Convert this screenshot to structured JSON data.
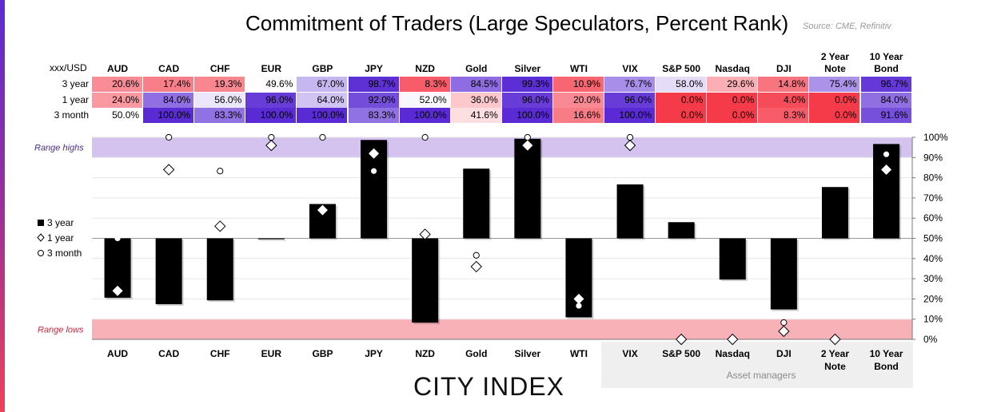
{
  "title": "Commitment of Traders (Large Speculators, Percent Rank)",
  "source": "Source: CME, Refinitiv",
  "table": {
    "corner": "xxx/USD",
    "columns": [
      "AUD",
      "CAD",
      "CHF",
      "EUR",
      "GBP",
      "JPY",
      "NZD",
      "Gold",
      "Silver",
      "WTI",
      "VIX",
      "S&P 500",
      "Nasdaq",
      "DJI",
      "2 Year\nNote",
      "10 Year\nBond"
    ],
    "rows": [
      {
        "label": "3 year",
        "values": [
          "20.6%",
          "17.4%",
          "19.3%",
          "49.6%",
          "67.0%",
          "98.7%",
          "8.3%",
          "84.5%",
          "99.3%",
          "10.9%",
          "76.7%",
          "58.0%",
          "29.6%",
          "14.8%",
          "75.4%",
          "96.7%"
        ]
      },
      {
        "label": "1 year",
        "values": [
          "24.0%",
          "84.0%",
          "56.0%",
          "96.0%",
          "64.0%",
          "92.0%",
          "52.0%",
          "36.0%",
          "96.0%",
          "20.0%",
          "96.0%",
          "0.0%",
          "0.0%",
          "4.0%",
          "0.0%",
          "84.0%"
        ]
      },
      {
        "label": "3 month",
        "values": [
          "50.0%",
          "100.0%",
          "83.3%",
          "100.0%",
          "100.0%",
          "83.3%",
          "100.0%",
          "41.6%",
          "100.0%",
          "16.6%",
          "100.0%",
          "0.0%",
          "0.0%",
          "8.3%",
          "0.0%",
          "91.6%"
        ]
      }
    ]
  },
  "colors": {
    "high": "#5a2bd4",
    "mid": "#ffffff",
    "low": "#f53b4a",
    "range_highs_band": "#d4c3ef",
    "range_lows_band": "#f9b1b8",
    "range_highs_text": "#4a2d8a",
    "range_lows_text": "#c8283c",
    "bar": "#000000",
    "asset_managers_bg": "#efefef"
  },
  "chart_data": {
    "type": "bar",
    "categories": [
      "AUD",
      "CAD",
      "CHF",
      "EUR",
      "GBP",
      "JPY",
      "NZD",
      "Gold",
      "Silver",
      "WTI",
      "VIX",
      "S&P 500",
      "Nasdaq",
      "DJI",
      "2 Year\nNote",
      "10 Year\nBond"
    ],
    "baseline": 50,
    "series": [
      {
        "name": "3 year",
        "kind": "bar",
        "values": [
          20.6,
          17.4,
          19.3,
          49.6,
          67.0,
          98.7,
          8.3,
          84.5,
          99.3,
          10.9,
          76.7,
          58.0,
          29.6,
          14.8,
          75.4,
          96.7
        ]
      },
      {
        "name": "1 year",
        "kind": "diamond",
        "values": [
          24.0,
          84.0,
          56.0,
          96.0,
          64.0,
          92.0,
          52.0,
          36.0,
          96.0,
          20.0,
          96.0,
          0.0,
          0.0,
          4.0,
          0.0,
          84.0
        ]
      },
      {
        "name": "3 month",
        "kind": "circle",
        "values": [
          50.0,
          100.0,
          83.3,
          100.0,
          100.0,
          83.3,
          100.0,
          41.6,
          100.0,
          16.6,
          100.0,
          0.0,
          0.0,
          8.3,
          0.0,
          91.6
        ]
      }
    ],
    "y_ticks": [
      "0%",
      "10%",
      "20%",
      "30%",
      "40%",
      "50%",
      "60%",
      "70%",
      "80%",
      "90%",
      "100%"
    ],
    "ylim": [
      0,
      100
    ],
    "range_highs": {
      "label": "Range highs",
      "from": 90,
      "to": 100
    },
    "range_lows": {
      "label": "Range lows",
      "from": 0,
      "to": 10
    },
    "asset_managers": {
      "label": "Asset managers",
      "categories": [
        "VIX",
        "S&P 500",
        "Nasdaq",
        "DJI",
        "2 Year\nNote",
        "10 Year\nBond"
      ]
    },
    "legend_placement": "left"
  },
  "brand": "CITY INDEX"
}
